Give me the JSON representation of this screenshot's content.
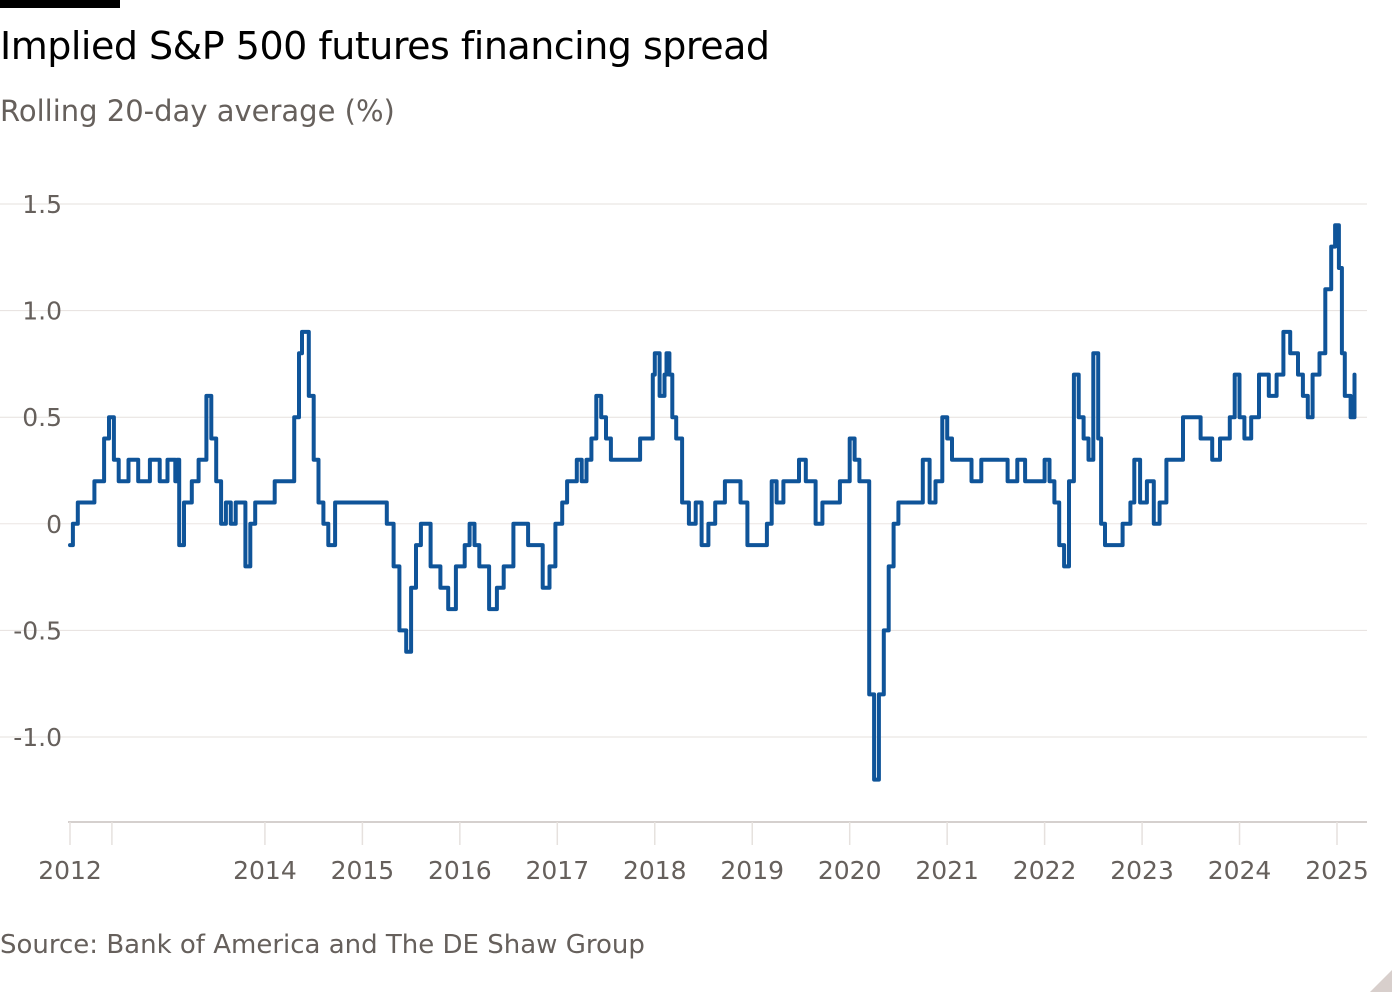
{
  "header": {
    "title": "Implied S&P 500 futures financing spread",
    "subtitle": "Rolling 20-day average (%)"
  },
  "footer": {
    "source": "Source: Bank of America and The DE Shaw Group"
  },
  "colors": {
    "line": "#0f5499",
    "grid": "#e6e1de",
    "axis_text": "#66605c"
  },
  "chart_data": {
    "type": "line",
    "title": "Implied S&P 500 futures financing spread",
    "subtitle": "Rolling 20-day average (%)",
    "xlabel": "",
    "ylabel": "",
    "xlim": [
      2012.0,
      2025.25
    ],
    "ylim": [
      -1.4,
      1.6
    ],
    "y_ticks": [
      -1.0,
      -0.5,
      0,
      0.5,
      1.0,
      1.5
    ],
    "y_tick_labels": [
      "-1.0",
      "-0.5",
      "0",
      "0.5",
      "1.0",
      "1.5"
    ],
    "x_ticks": [
      2012,
      2014,
      2015,
      2016,
      2017,
      2018,
      2019,
      2020,
      2021,
      2022,
      2023,
      2024,
      2025
    ],
    "x_tick_labels": [
      "2012",
      "2014",
      "2015",
      "2016",
      "2017",
      "2018",
      "2019",
      "2020",
      "2021",
      "2022",
      "2023",
      "2024",
      "2025"
    ],
    "x_minor_ticks": [
      2012.43
    ],
    "grid": "horizontal",
    "series": [
      {
        "points": [
          [
            2012.0,
            -0.1
          ],
          [
            2012.03,
            0.0
          ],
          [
            2012.08,
            0.1
          ],
          [
            2012.25,
            0.2
          ],
          [
            2012.35,
            0.4
          ],
          [
            2012.4,
            0.5
          ],
          [
            2012.45,
            0.3
          ],
          [
            2012.5,
            0.2
          ],
          [
            2012.6,
            0.3
          ],
          [
            2012.7,
            0.2
          ],
          [
            2012.82,
            0.3
          ],
          [
            2012.92,
            0.2
          ],
          [
            2013.0,
            0.3
          ],
          [
            2013.08,
            0.2
          ],
          [
            2013.1,
            0.3
          ],
          [
            2013.12,
            -0.1
          ],
          [
            2013.17,
            0.1
          ],
          [
            2013.25,
            0.2
          ],
          [
            2013.32,
            0.3
          ],
          [
            2013.4,
            0.6
          ],
          [
            2013.45,
            0.4
          ],
          [
            2013.5,
            0.2
          ],
          [
            2013.55,
            0.0
          ],
          [
            2013.6,
            0.1
          ],
          [
            2013.65,
            0.0
          ],
          [
            2013.7,
            0.1
          ],
          [
            2013.8,
            -0.2
          ],
          [
            2013.85,
            0.0
          ],
          [
            2013.9,
            0.1
          ],
          [
            2014.1,
            0.2
          ],
          [
            2014.3,
            0.5
          ],
          [
            2014.35,
            0.8
          ],
          [
            2014.38,
            0.9
          ],
          [
            2014.45,
            0.6
          ],
          [
            2014.5,
            0.3
          ],
          [
            2014.55,
            0.1
          ],
          [
            2014.6,
            0.0
          ],
          [
            2014.65,
            -0.1
          ],
          [
            2014.72,
            0.1
          ],
          [
            2014.8,
            0.1
          ],
          [
            2014.9,
            0.1
          ],
          [
            2015.0,
            0.1
          ],
          [
            2015.08,
            0.1
          ],
          [
            2015.12,
            0.1
          ],
          [
            2015.2,
            0.1
          ],
          [
            2015.25,
            0.0
          ],
          [
            2015.32,
            -0.2
          ],
          [
            2015.38,
            -0.5
          ],
          [
            2015.45,
            -0.6
          ],
          [
            2015.5,
            -0.3
          ],
          [
            2015.55,
            -0.1
          ],
          [
            2015.6,
            0.0
          ],
          [
            2015.7,
            -0.2
          ],
          [
            2015.8,
            -0.3
          ],
          [
            2015.88,
            -0.4
          ],
          [
            2015.92,
            -0.4
          ],
          [
            2015.96,
            -0.2
          ],
          [
            2016.05,
            -0.1
          ],
          [
            2016.1,
            0.0
          ],
          [
            2016.15,
            -0.1
          ],
          [
            2016.2,
            -0.2
          ],
          [
            2016.3,
            -0.4
          ],
          [
            2016.38,
            -0.3
          ],
          [
            2016.45,
            -0.2
          ],
          [
            2016.55,
            0.0
          ],
          [
            2016.65,
            0.0
          ],
          [
            2016.7,
            -0.1
          ],
          [
            2016.78,
            -0.1
          ],
          [
            2016.85,
            -0.3
          ],
          [
            2016.92,
            -0.2
          ],
          [
            2016.98,
            0.0
          ],
          [
            2017.05,
            0.1
          ],
          [
            2017.1,
            0.2
          ],
          [
            2017.2,
            0.3
          ],
          [
            2017.25,
            0.2
          ],
          [
            2017.3,
            0.3
          ],
          [
            2017.35,
            0.4
          ],
          [
            2017.4,
            0.6
          ],
          [
            2017.45,
            0.5
          ],
          [
            2017.5,
            0.4
          ],
          [
            2017.55,
            0.3
          ],
          [
            2017.65,
            0.3
          ],
          [
            2017.75,
            0.3
          ],
          [
            2017.85,
            0.4
          ],
          [
            2017.95,
            0.4
          ],
          [
            2017.98,
            0.7
          ],
          [
            2018.0,
            0.8
          ],
          [
            2018.05,
            0.6
          ],
          [
            2018.1,
            0.7
          ],
          [
            2018.12,
            0.8
          ],
          [
            2018.15,
            0.7
          ],
          [
            2018.18,
            0.5
          ],
          [
            2018.22,
            0.4
          ],
          [
            2018.28,
            0.1
          ],
          [
            2018.35,
            0.0
          ],
          [
            2018.42,
            0.1
          ],
          [
            2018.48,
            -0.1
          ],
          [
            2018.55,
            0.0
          ],
          [
            2018.62,
            0.1
          ],
          [
            2018.72,
            0.2
          ],
          [
            2018.8,
            0.2
          ],
          [
            2018.88,
            0.1
          ],
          [
            2018.95,
            -0.1
          ],
          [
            2019.05,
            -0.1
          ],
          [
            2019.15,
            0.0
          ],
          [
            2019.2,
            0.2
          ],
          [
            2019.25,
            0.1
          ],
          [
            2019.32,
            0.2
          ],
          [
            2019.4,
            0.2
          ],
          [
            2019.48,
            0.3
          ],
          [
            2019.55,
            0.2
          ],
          [
            2019.65,
            0.0
          ],
          [
            2019.72,
            0.1
          ],
          [
            2019.8,
            0.1
          ],
          [
            2019.9,
            0.2
          ],
          [
            2020.0,
            0.4
          ],
          [
            2020.05,
            0.3
          ],
          [
            2020.1,
            0.2
          ],
          [
            2020.15,
            0.2
          ],
          [
            2020.2,
            -0.8
          ],
          [
            2020.25,
            -1.2
          ],
          [
            2020.3,
            -0.8
          ],
          [
            2020.35,
            -0.5
          ],
          [
            2020.4,
            -0.2
          ],
          [
            2020.45,
            0.0
          ],
          [
            2020.5,
            0.1
          ],
          [
            2020.6,
            0.1
          ],
          [
            2020.68,
            0.1
          ],
          [
            2020.75,
            0.3
          ],
          [
            2020.82,
            0.1
          ],
          [
            2020.88,
            0.2
          ],
          [
            2020.95,
            0.5
          ],
          [
            2021.0,
            0.4
          ],
          [
            2021.05,
            0.3
          ],
          [
            2021.15,
            0.3
          ],
          [
            2021.25,
            0.2
          ],
          [
            2021.35,
            0.3
          ],
          [
            2021.45,
            0.3
          ],
          [
            2021.55,
            0.3
          ],
          [
            2021.62,
            0.2
          ],
          [
            2021.72,
            0.3
          ],
          [
            2021.8,
            0.2
          ],
          [
            2021.9,
            0.2
          ],
          [
            2022.0,
            0.3
          ],
          [
            2022.05,
            0.2
          ],
          [
            2022.1,
            0.1
          ],
          [
            2022.15,
            -0.1
          ],
          [
            2022.2,
            -0.2
          ],
          [
            2022.25,
            0.2
          ],
          [
            2022.3,
            0.7
          ],
          [
            2022.35,
            0.5
          ],
          [
            2022.4,
            0.4
          ],
          [
            2022.45,
            0.3
          ],
          [
            2022.5,
            0.8
          ],
          [
            2022.55,
            0.4
          ],
          [
            2022.58,
            0.0
          ],
          [
            2022.62,
            -0.1
          ],
          [
            2022.72,
            -0.1
          ],
          [
            2022.8,
            0.0
          ],
          [
            2022.88,
            0.1
          ],
          [
            2022.92,
            0.3
          ],
          [
            2022.98,
            0.1
          ],
          [
            2023.05,
            0.2
          ],
          [
            2023.12,
            0.0
          ],
          [
            2023.18,
            0.1
          ],
          [
            2023.25,
            0.3
          ],
          [
            2023.35,
            0.3
          ],
          [
            2023.42,
            0.5
          ],
          [
            2023.5,
            0.5
          ],
          [
            2023.6,
            0.4
          ],
          [
            2023.72,
            0.3
          ],
          [
            2023.8,
            0.4
          ],
          [
            2023.9,
            0.5
          ],
          [
            2023.95,
            0.7
          ],
          [
            2024.0,
            0.5
          ],
          [
            2024.05,
            0.4
          ],
          [
            2024.12,
            0.5
          ],
          [
            2024.2,
            0.7
          ],
          [
            2024.3,
            0.6
          ],
          [
            2024.38,
            0.7
          ],
          [
            2024.45,
            0.9
          ],
          [
            2024.52,
            0.8
          ],
          [
            2024.6,
            0.7
          ],
          [
            2024.65,
            0.6
          ],
          [
            2024.7,
            0.5
          ],
          [
            2024.75,
            0.7
          ],
          [
            2024.82,
            0.8
          ],
          [
            2024.88,
            1.1
          ],
          [
            2024.94,
            1.3
          ],
          [
            2024.98,
            1.4
          ],
          [
            2025.02,
            1.2
          ],
          [
            2025.05,
            0.8
          ],
          [
            2025.08,
            0.6
          ],
          [
            2025.14,
            0.5
          ],
          [
            2025.18,
            0.7
          ]
        ]
      }
    ]
  }
}
